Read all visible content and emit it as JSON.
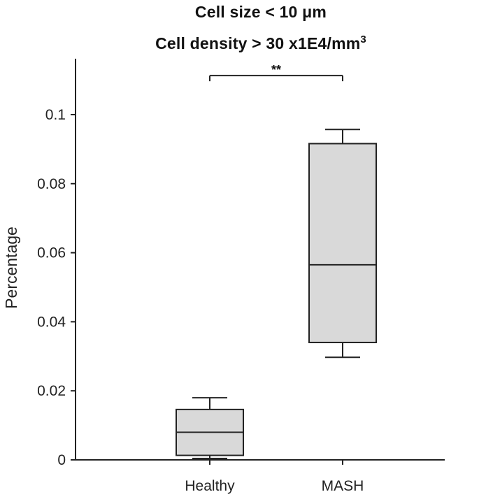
{
  "chart_data": {
    "type": "box",
    "title_line1_prefix": "Cell size < 10 ",
    "title_line1_unit": "μm",
    "title_line2_prefix": "Cell density > 30 x1E4/mm",
    "title_line2_sup": "3",
    "xlabel": "",
    "ylabel": "Percentage",
    "ylim": [
      0,
      0.1125
    ],
    "yticks": [
      "0",
      "0.02",
      "0.04",
      "0.06",
      "0.08",
      "0.1"
    ],
    "ytick_values": [
      0,
      0.02,
      0.04,
      0.06,
      0.08,
      0.1
    ],
    "grid": false,
    "box_color": "#d9d9d9",
    "categories": [
      "Healthy",
      "MASH"
    ],
    "boxes": [
      {
        "category": "Healthy",
        "min": 0.0004,
        "q1": 0.0013,
        "median": 0.008,
        "q3": 0.0146,
        "max": 0.018
      },
      {
        "category": "MASH",
        "min": 0.0297,
        "q1": 0.034,
        "median": 0.0565,
        "q3": 0.0916,
        "max": 0.0957
      }
    ],
    "annotations": [
      {
        "from": "Healthy",
        "to": "MASH",
        "y": 0.1113,
        "label": "**"
      }
    ]
  }
}
